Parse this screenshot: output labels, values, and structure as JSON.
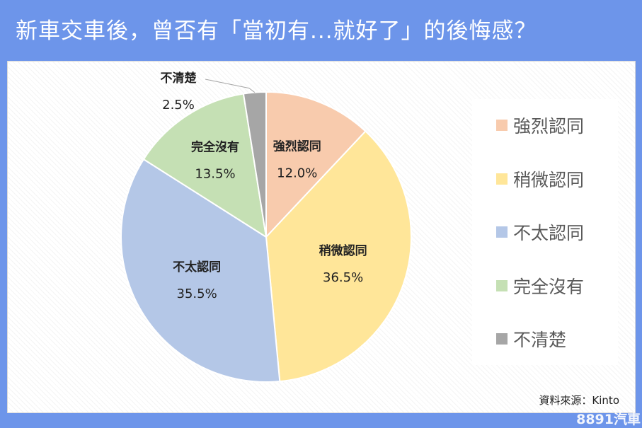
{
  "header": {
    "title": "新車交車後，曾否有「當初有...就好了」的後悔感？"
  },
  "chart_data": {
    "type": "pie",
    "categories": [
      "強烈認同",
      "稍微認同",
      "不太認同",
      "完全沒有",
      "不清楚"
    ],
    "values": [
      12.0,
      36.5,
      35.5,
      13.5,
      2.5
    ],
    "value_labels": [
      "12.0%",
      "36.5%",
      "35.5%",
      "13.5%",
      "2.5%"
    ],
    "colors": [
      "#f8cbad",
      "#ffe699",
      "#b4c7e7",
      "#c5e0b4",
      "#a6a6a6"
    ],
    "start_angle": "top (12 o'clock), clockwise",
    "legend_position": "right"
  },
  "footer": {
    "source": "資料來源：Kinto",
    "watermark": "8891汽車"
  }
}
